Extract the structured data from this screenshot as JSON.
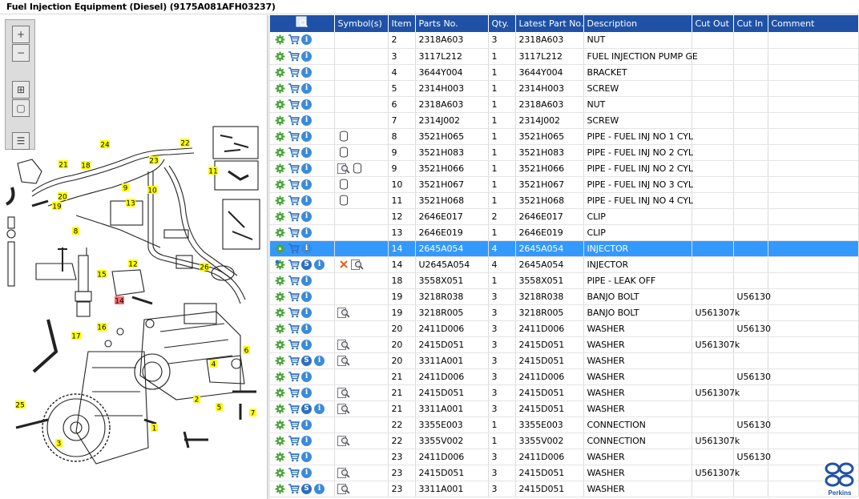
{
  "window": {
    "title": "Fuel Injection Equipment (Diesel) (9175A081AFH03237)"
  },
  "diagram": {
    "toolbar": [
      {
        "name": "zoom-in-button",
        "icon": "zoom-in-icon",
        "glyph": "+"
      },
      {
        "name": "zoom-out-button",
        "icon": "zoom-out-icon",
        "glyph": "−"
      },
      {
        "name": "fit-to-window-button",
        "icon": "fit-window-icon",
        "glyph": "⊞"
      },
      {
        "name": "actual-size-button",
        "icon": "actual-size-icon",
        "glyph": "▢"
      },
      {
        "name": "toggle-parts-list-button",
        "icon": "list-toggle-icon",
        "glyph": "☰"
      }
    ],
    "callouts": [
      {
        "label": "24",
        "highlight": false
      },
      {
        "label": "22",
        "highlight": false
      },
      {
        "label": "23",
        "highlight": false
      },
      {
        "label": "21",
        "highlight": false
      },
      {
        "label": "18",
        "highlight": false
      },
      {
        "label": "9",
        "highlight": false
      },
      {
        "label": "10",
        "highlight": false
      },
      {
        "label": "11",
        "highlight": false
      },
      {
        "label": "20",
        "highlight": false
      },
      {
        "label": "19",
        "highlight": false
      },
      {
        "label": "13",
        "highlight": false
      },
      {
        "label": "8",
        "highlight": false
      },
      {
        "label": "12",
        "highlight": false
      },
      {
        "label": "26",
        "highlight": false
      },
      {
        "label": "15",
        "highlight": false
      },
      {
        "label": "14",
        "highlight": true
      },
      {
        "label": "16",
        "highlight": false
      },
      {
        "label": "17",
        "highlight": false
      },
      {
        "label": "6",
        "highlight": false
      },
      {
        "label": "4",
        "highlight": false
      },
      {
        "label": "2",
        "highlight": false
      },
      {
        "label": "5",
        "highlight": false
      },
      {
        "label": "7",
        "highlight": false
      },
      {
        "label": "25",
        "highlight": false
      },
      {
        "label": "1",
        "highlight": false
      },
      {
        "label": "3",
        "highlight": false
      }
    ]
  },
  "grid": {
    "columns": [
      "",
      "Symbol(s)",
      "Item",
      "Parts No.",
      "Qty.",
      "Latest Part No.",
      "Description",
      "Cut Out",
      "Cut In",
      "Comment"
    ],
    "header_icon": "column-chooser-icon",
    "rows": [
      {
        "actions": [
          "gear",
          "cart",
          "info"
        ],
        "symbols": [],
        "item": "2",
        "part": "2318A603",
        "qty": "3",
        "latest": "2318A603",
        "desc": "NUT",
        "cut_out": "",
        "cut_in": "",
        "comment": ""
      },
      {
        "actions": [
          "gear",
          "cart",
          "info"
        ],
        "symbols": [],
        "item": "3",
        "part": "3117L212",
        "qty": "1",
        "latest": "3117L212",
        "desc": "FUEL INJECTION PUMP GE",
        "cut_out": "",
        "cut_in": "",
        "comment": ""
      },
      {
        "actions": [
          "gear",
          "cart",
          "info"
        ],
        "symbols": [],
        "item": "4",
        "part": "3644Y004",
        "qty": "1",
        "latest": "3644Y004",
        "desc": "BRACKET",
        "cut_out": "",
        "cut_in": "",
        "comment": ""
      },
      {
        "actions": [
          "gear",
          "cart",
          "info"
        ],
        "symbols": [],
        "item": "5",
        "part": "2314H003",
        "qty": "1",
        "latest": "2314H003",
        "desc": "SCREW",
        "cut_out": "",
        "cut_in": "",
        "comment": ""
      },
      {
        "actions": [
          "gear",
          "cart",
          "info"
        ],
        "symbols": [],
        "item": "6",
        "part": "2318A603",
        "qty": "1",
        "latest": "2318A603",
        "desc": "NUT",
        "cut_out": "",
        "cut_in": "",
        "comment": ""
      },
      {
        "actions": [
          "gear",
          "cart",
          "info"
        ],
        "symbols": [],
        "item": "7",
        "part": "2314J002",
        "qty": "1",
        "latest": "2314J002",
        "desc": "SCREW",
        "cut_out": "",
        "cut_in": "",
        "comment": ""
      },
      {
        "actions": [
          "gear",
          "cart",
          "info"
        ],
        "symbols": [
          "cylinder"
        ],
        "item": "8",
        "part": "3521H065",
        "qty": "1",
        "latest": "3521H065",
        "desc": "PIPE - FUEL INJ NO 1 CYL",
        "cut_out": "",
        "cut_in": "",
        "comment": ""
      },
      {
        "actions": [
          "gear",
          "cart",
          "info"
        ],
        "symbols": [
          "cylinder"
        ],
        "item": "9",
        "part": "3521H083",
        "qty": "1",
        "latest": "3521H083",
        "desc": "PIPE - FUEL INJ NO 2 CYL",
        "cut_out": "",
        "cut_in": "",
        "comment": ""
      },
      {
        "actions": [
          "gear",
          "cart",
          "info"
        ],
        "symbols": [
          "magnifier",
          "cylinder"
        ],
        "item": "9",
        "part": "3521H066",
        "qty": "1",
        "latest": "3521H066",
        "desc": "PIPE - FUEL INJ NO 2 CYL",
        "cut_out": "",
        "cut_in": "",
        "comment": ""
      },
      {
        "actions": [
          "gear",
          "cart",
          "info"
        ],
        "symbols": [
          "cylinder"
        ],
        "item": "10",
        "part": "3521H067",
        "qty": "1",
        "latest": "3521H067",
        "desc": "PIPE - FUEL INJ NO 3 CYL",
        "cut_out": "",
        "cut_in": "",
        "comment": ""
      },
      {
        "actions": [
          "gear",
          "cart",
          "info"
        ],
        "symbols": [
          "cylinder"
        ],
        "item": "11",
        "part": "3521H068",
        "qty": "1",
        "latest": "3521H068",
        "desc": "PIPE - FUEL INJ NO 4 CYL",
        "cut_out": "",
        "cut_in": "",
        "comment": ""
      },
      {
        "actions": [
          "gear",
          "cart",
          "info"
        ],
        "symbols": [],
        "item": "12",
        "part": "2646E017",
        "qty": "2",
        "latest": "2646E017",
        "desc": "CLIP",
        "cut_out": "",
        "cut_in": "",
        "comment": ""
      },
      {
        "actions": [
          "gear",
          "cart",
          "info"
        ],
        "symbols": [],
        "item": "13",
        "part": "2646E019",
        "qty": "1",
        "latest": "2646E019",
        "desc": "CLIP",
        "cut_out": "",
        "cut_in": "",
        "comment": ""
      },
      {
        "actions": [
          "gear",
          "cart",
          "info"
        ],
        "symbols": [],
        "item": "14",
        "part": "2645A054",
        "qty": "4",
        "latest": "2645A054",
        "desc": "INJECTOR",
        "cut_out": "",
        "cut_in": "",
        "comment": "",
        "selected": true
      },
      {
        "actions": [
          "gears",
          "cart",
          "s",
          "info"
        ],
        "symbols": [
          "cross",
          "magnifier"
        ],
        "item": "14",
        "part": "U2645A054",
        "qty": "4",
        "latest": "2645A054",
        "desc": "INJECTOR",
        "cut_out": "",
        "cut_in": "",
        "comment": ""
      },
      {
        "actions": [
          "gear",
          "cart",
          "info"
        ],
        "symbols": [],
        "item": "18",
        "part": "3558X051",
        "qty": "1",
        "latest": "3558X051",
        "desc": "PIPE - LEAK OFF",
        "cut_out": "",
        "cut_in": "",
        "comment": ""
      },
      {
        "actions": [
          "gear",
          "cart",
          "info"
        ],
        "symbols": [],
        "item": "19",
        "part": "3218R038",
        "qty": "3",
        "latest": "3218R038",
        "desc": "BANJO BOLT",
        "cut_out": "",
        "cut_in": "U56130",
        "comment": ""
      },
      {
        "actions": [
          "gear",
          "cart",
          "info"
        ],
        "symbols": [
          "magnifier"
        ],
        "item": "19",
        "part": "3218R005",
        "qty": "3",
        "latest": "3218R005",
        "desc": "BANJO BOLT",
        "cut_out": "U561307k",
        "cut_in": "",
        "comment": ""
      },
      {
        "actions": [
          "gear",
          "cart",
          "info"
        ],
        "symbols": [],
        "item": "20",
        "part": "2411D006",
        "qty": "3",
        "latest": "2411D006",
        "desc": "WASHER",
        "cut_out": "",
        "cut_in": "U56130",
        "comment": ""
      },
      {
        "actions": [
          "gear",
          "cart",
          "info"
        ],
        "symbols": [
          "magnifier"
        ],
        "item": "20",
        "part": "2415D051",
        "qty": "3",
        "latest": "2415D051",
        "desc": "WASHER",
        "cut_out": "U561307k",
        "cut_in": "",
        "comment": ""
      },
      {
        "actions": [
          "gear",
          "cart",
          "s",
          "info"
        ],
        "symbols": [
          "magnifier"
        ],
        "item": "20",
        "part": "3311A001",
        "qty": "3",
        "latest": "2415D051",
        "desc": "WASHER",
        "cut_out": "",
        "cut_in": "",
        "comment": ""
      },
      {
        "actions": [
          "gear",
          "cart",
          "info"
        ],
        "symbols": [],
        "item": "21",
        "part": "2411D006",
        "qty": "3",
        "latest": "2411D006",
        "desc": "WASHER",
        "cut_out": "",
        "cut_in": "U56130",
        "comment": ""
      },
      {
        "actions": [
          "gear",
          "cart",
          "info"
        ],
        "symbols": [
          "magnifier"
        ],
        "item": "21",
        "part": "2415D051",
        "qty": "3",
        "latest": "2415D051",
        "desc": "WASHER",
        "cut_out": "U561307k",
        "cut_in": "",
        "comment": ""
      },
      {
        "actions": [
          "gear",
          "cart",
          "s",
          "info"
        ],
        "symbols": [
          "magnifier"
        ],
        "item": "21",
        "part": "3311A001",
        "qty": "3",
        "latest": "2415D051",
        "desc": "WASHER",
        "cut_out": "",
        "cut_in": "",
        "comment": ""
      },
      {
        "actions": [
          "gear",
          "cart",
          "info"
        ],
        "symbols": [],
        "item": "22",
        "part": "3355E003",
        "qty": "1",
        "latest": "3355E003",
        "desc": "CONNECTION",
        "cut_out": "",
        "cut_in": "U56130",
        "comment": ""
      },
      {
        "actions": [
          "gear",
          "cart",
          "info"
        ],
        "symbols": [
          "magnifier"
        ],
        "item": "22",
        "part": "3355V002",
        "qty": "1",
        "latest": "3355V002",
        "desc": "CONNECTION",
        "cut_out": "U561307k",
        "cut_in": "",
        "comment": ""
      },
      {
        "actions": [
          "gear",
          "cart",
          "info"
        ],
        "symbols": [],
        "item": "23",
        "part": "2411D006",
        "qty": "3",
        "latest": "2411D006",
        "desc": "WASHER",
        "cut_out": "",
        "cut_in": "U56130",
        "comment": ""
      },
      {
        "actions": [
          "gear",
          "cart",
          "info"
        ],
        "symbols": [
          "magnifier"
        ],
        "item": "23",
        "part": "2415D051",
        "qty": "3",
        "latest": "2415D051",
        "desc": "WASHER",
        "cut_out": "U561307k",
        "cut_in": "",
        "comment": ""
      },
      {
        "actions": [
          "gear",
          "cart",
          "s",
          "info"
        ],
        "symbols": [
          "magnifier"
        ],
        "item": "23",
        "part": "3311A001",
        "qty": "3",
        "latest": "2415D051",
        "desc": "WASHER",
        "cut_out": "",
        "cut_in": "",
        "comment": ""
      }
    ]
  },
  "brand": {
    "name": "Perkins",
    "color": "#1f52a6"
  },
  "colors": {
    "header": "#1f52a6",
    "selected_row": "#3399ff",
    "callout": "#ffff00",
    "callout_highlight": "#ff6b6b"
  }
}
